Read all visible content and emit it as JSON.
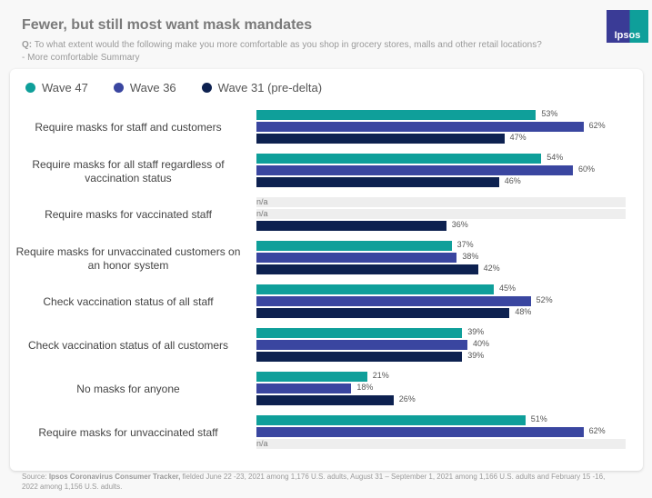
{
  "header": {
    "title": "Fewer, but still most want mask mandates",
    "q_label": "Q:",
    "question": "To what extent would the following make you more comfortable as you shop in grocery stores, malls and other retail locations?",
    "subtitle": "- More comfortable Summary",
    "logo": "Ipsos"
  },
  "footer": {
    "source_label": "Source:",
    "source_name": "Ipsos Coronavirus Consumer Tracker,",
    "source_text": "fielded June 22 -23, 2021 among 1,176 U.S. adults, August 31 – September 1, 2021 among 1,166 U.S. adults and February 15 -16, 2022 among 1,156 U.S. adults."
  },
  "chart_data": {
    "type": "bar",
    "orientation": "horizontal",
    "legend_position": "top-left",
    "xlim": [
      0,
      70
    ],
    "categories": [
      "Require masks for staff and customers",
      "Require masks for all staff regardless of vaccination status",
      "Require masks for vaccinated staff",
      "Require masks for unvaccinated customers on an honor system",
      "Check vaccination status of all staff",
      "Check vaccination status of all customers",
      "No masks for anyone",
      "Require masks for unvaccinated staff"
    ],
    "na_label": "n/a",
    "series": [
      {
        "name": "Wave 47",
        "color": "#0f9f9a",
        "values": [
          53,
          54,
          null,
          37,
          45,
          39,
          21,
          51
        ]
      },
      {
        "name": "Wave 36",
        "color": "#3a46a0",
        "values": [
          62,
          60,
          null,
          38,
          52,
          40,
          18,
          62
        ]
      },
      {
        "name": "Wave 31 (pre-delta)",
        "color": "#0d2150",
        "values": [
          47,
          46,
          36,
          42,
          48,
          39,
          26,
          null
        ]
      }
    ]
  }
}
